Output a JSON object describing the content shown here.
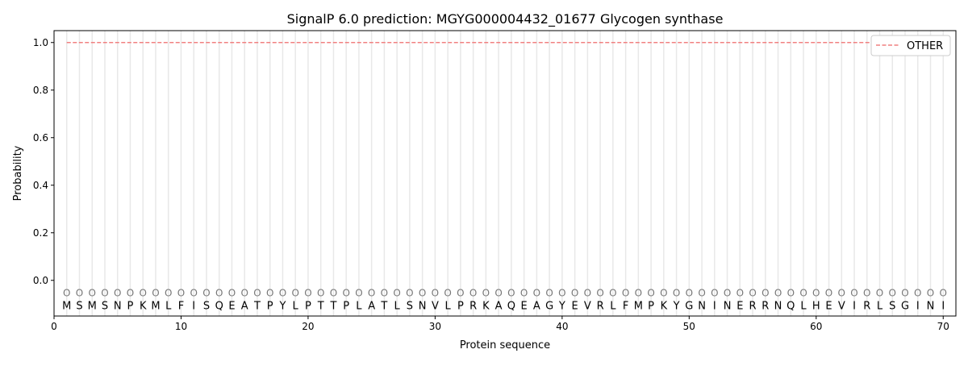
{
  "chart_data": {
    "type": "line",
    "title": "SignalP 6.0 prediction: MGYG000004432_01677 Glycogen synthase",
    "xlabel": "Protein sequence",
    "ylabel": "Probability",
    "xlim": [
      0,
      71
    ],
    "ylim": [
      -0.15,
      1.05
    ],
    "xticks": [
      0,
      10,
      20,
      30,
      40,
      50,
      60,
      70
    ],
    "yticks": [
      0.0,
      0.2,
      0.4,
      0.6,
      0.8,
      1.0
    ],
    "ytick_labels": [
      "0.0",
      "0.2",
      "0.4",
      "0.6",
      "0.8",
      "1.0"
    ],
    "grid": "vertical lines at each residue",
    "legend_placement": "top-right",
    "sequence": [
      "M",
      "S",
      "M",
      "S",
      "N",
      "P",
      "K",
      "M",
      "L",
      "F",
      "I",
      "S",
      "Q",
      "E",
      "A",
      "T",
      "P",
      "Y",
      "L",
      "P",
      "T",
      "T",
      "P",
      "L",
      "A",
      "T",
      "L",
      "S",
      "N",
      "V",
      "L",
      "P",
      "R",
      "K",
      "A",
      "Q",
      "E",
      "A",
      "G",
      "Y",
      "E",
      "V",
      "R",
      "L",
      "F",
      "M",
      "P",
      "K",
      "Y",
      "G",
      "N",
      "I",
      "N",
      "E",
      "R",
      "R",
      "N",
      "Q",
      "L",
      "H",
      "E",
      "V",
      "I",
      "R",
      "L",
      "S",
      "G",
      "I",
      "N",
      "I"
    ],
    "predicted_label": "O",
    "series": [
      {
        "name": "OTHER",
        "color": "#f08080",
        "style": "dashed",
        "x_range": [
          1,
          70
        ],
        "value": 1.0
      }
    ]
  }
}
